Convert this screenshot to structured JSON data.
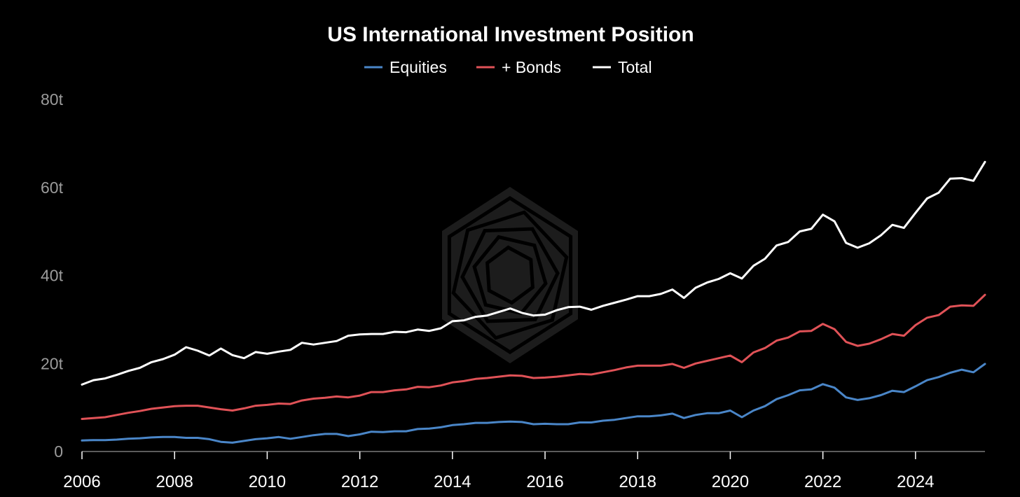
{
  "chart_data": {
    "type": "line",
    "title": "US International Investment Position",
    "xlabel": "",
    "ylabel": "",
    "xlim": [
      2006,
      2025.5
    ],
    "ylim": [
      0,
      80
    ],
    "x_ticks": [
      2006,
      2008,
      2010,
      2012,
      2014,
      2016,
      2018,
      2020,
      2022,
      2024
    ],
    "x_tick_labels": [
      "2006",
      "2008",
      "2010",
      "2012",
      "2014",
      "2016",
      "2018",
      "2020",
      "2022",
      "2024"
    ],
    "y_ticks": [
      0,
      20,
      40,
      60,
      80
    ],
    "y_tick_labels": [
      "0",
      "20t",
      "40t",
      "60t",
      "80t"
    ],
    "grid": false,
    "legend": "top-center",
    "x": [
      2006.0,
      2006.25,
      2006.5,
      2006.75,
      2007.0,
      2007.25,
      2007.5,
      2007.75,
      2008.0,
      2008.25,
      2008.5,
      2008.75,
      2009.0,
      2009.25,
      2009.5,
      2009.75,
      2010.0,
      2010.25,
      2010.5,
      2010.75,
      2011.0,
      2011.25,
      2011.5,
      2011.75,
      2012.0,
      2012.25,
      2012.5,
      2012.75,
      2013.0,
      2013.25,
      2013.5,
      2013.75,
      2014.0,
      2014.25,
      2014.5,
      2014.75,
      2015.0,
      2015.25,
      2015.5,
      2015.75,
      2016.0,
      2016.25,
      2016.5,
      2016.75,
      2017.0,
      2017.25,
      2017.5,
      2017.75,
      2018.0,
      2018.25,
      2018.5,
      2018.75,
      2019.0,
      2019.25,
      2019.5,
      2019.75,
      2020.0,
      2020.25,
      2020.5,
      2020.75,
      2021.0,
      2021.25,
      2021.5,
      2021.75,
      2022.0,
      2022.25,
      2022.5,
      2022.75,
      2023.0,
      2023.25,
      2023.5,
      2023.75,
      2024.0,
      2024.25,
      2024.5,
      2024.75,
      2025.0,
      2025.25,
      2025.5
    ],
    "series": [
      {
        "name": "Equities",
        "color": "#4a86c8",
        "values": [
          2.5,
          2.6,
          2.6,
          2.7,
          2.9,
          3.0,
          3.2,
          3.3,
          3.3,
          3.1,
          3.1,
          2.8,
          2.2,
          2.0,
          2.4,
          2.8,
          3.0,
          3.3,
          2.9,
          3.3,
          3.7,
          4.0,
          4.0,
          3.5,
          3.9,
          4.5,
          4.4,
          4.6,
          4.6,
          5.1,
          5.2,
          5.5,
          6.0,
          6.2,
          6.5,
          6.5,
          6.7,
          6.8,
          6.7,
          6.2,
          6.3,
          6.2,
          6.2,
          6.6,
          6.6,
          7.0,
          7.2,
          7.6,
          8.0,
          8.0,
          8.2,
          8.6,
          7.6,
          8.3,
          8.7,
          8.7,
          9.3,
          7.8,
          9.3,
          10.3,
          11.9,
          12.8,
          13.9,
          14.1,
          15.3,
          14.5,
          12.3,
          11.7,
          12.1,
          12.8,
          13.8,
          13.5,
          14.8,
          16.2,
          16.9,
          17.9,
          18.6,
          18.0,
          19.9
        ]
      },
      {
        "name": "+ Bonds",
        "color": "#e05257",
        "values": [
          7.4,
          7.6,
          7.8,
          8.3,
          8.8,
          9.2,
          9.7,
          10.0,
          10.3,
          10.4,
          10.4,
          10.0,
          9.6,
          9.3,
          9.8,
          10.4,
          10.6,
          10.9,
          10.8,
          11.6,
          12.0,
          12.2,
          12.5,
          12.3,
          12.7,
          13.5,
          13.5,
          13.9,
          14.1,
          14.7,
          14.6,
          15.0,
          15.7,
          16.0,
          16.5,
          16.7,
          17.0,
          17.3,
          17.2,
          16.7,
          16.8,
          17.0,
          17.3,
          17.6,
          17.5,
          18.0,
          18.5,
          19.1,
          19.5,
          19.5,
          19.5,
          19.9,
          19.0,
          20.0,
          20.6,
          21.2,
          21.8,
          20.3,
          22.5,
          23.5,
          25.2,
          25.9,
          27.3,
          27.4,
          29.0,
          27.8,
          24.9,
          24.0,
          24.5,
          25.5,
          26.7,
          26.3,
          28.7,
          30.4,
          31.0,
          32.9,
          33.2,
          33.1,
          35.6
        ]
      },
      {
        "name": "Total",
        "color": "#ffffff",
        "values": [
          15.2,
          16.2,
          16.6,
          17.4,
          18.3,
          19.0,
          20.3,
          21.0,
          22.0,
          23.7,
          22.9,
          21.8,
          23.4,
          21.9,
          21.2,
          22.6,
          22.2,
          22.7,
          23.1,
          24.7,
          24.3,
          24.7,
          25.1,
          26.3,
          26.6,
          26.7,
          26.7,
          27.2,
          27.1,
          27.7,
          27.4,
          28.0,
          29.6,
          29.8,
          30.6,
          30.9,
          31.7,
          32.5,
          31.5,
          30.9,
          31.1,
          32.1,
          32.8,
          32.9,
          32.2,
          33.1,
          33.8,
          34.5,
          35.3,
          35.3,
          35.8,
          36.8,
          34.9,
          37.2,
          38.4,
          39.2,
          40.5,
          39.3,
          42.2,
          43.8,
          46.8,
          47.6,
          50.0,
          50.6,
          53.8,
          52.3,
          47.4,
          46.3,
          47.3,
          49.1,
          51.5,
          50.8,
          54.2,
          57.5,
          58.8,
          62.0,
          62.1,
          61.5,
          65.8
        ]
      }
    ]
  },
  "colors": {
    "background": "#000000",
    "title": "#ffffff",
    "legend_text": "#ffffff",
    "tick_label_y": "#9b9b9b",
    "tick_label_x": "#ffffff",
    "axis": "#7a7a7a",
    "watermark": "#2c2c2c"
  },
  "watermark_icon": "hexagon-spiral-logo"
}
